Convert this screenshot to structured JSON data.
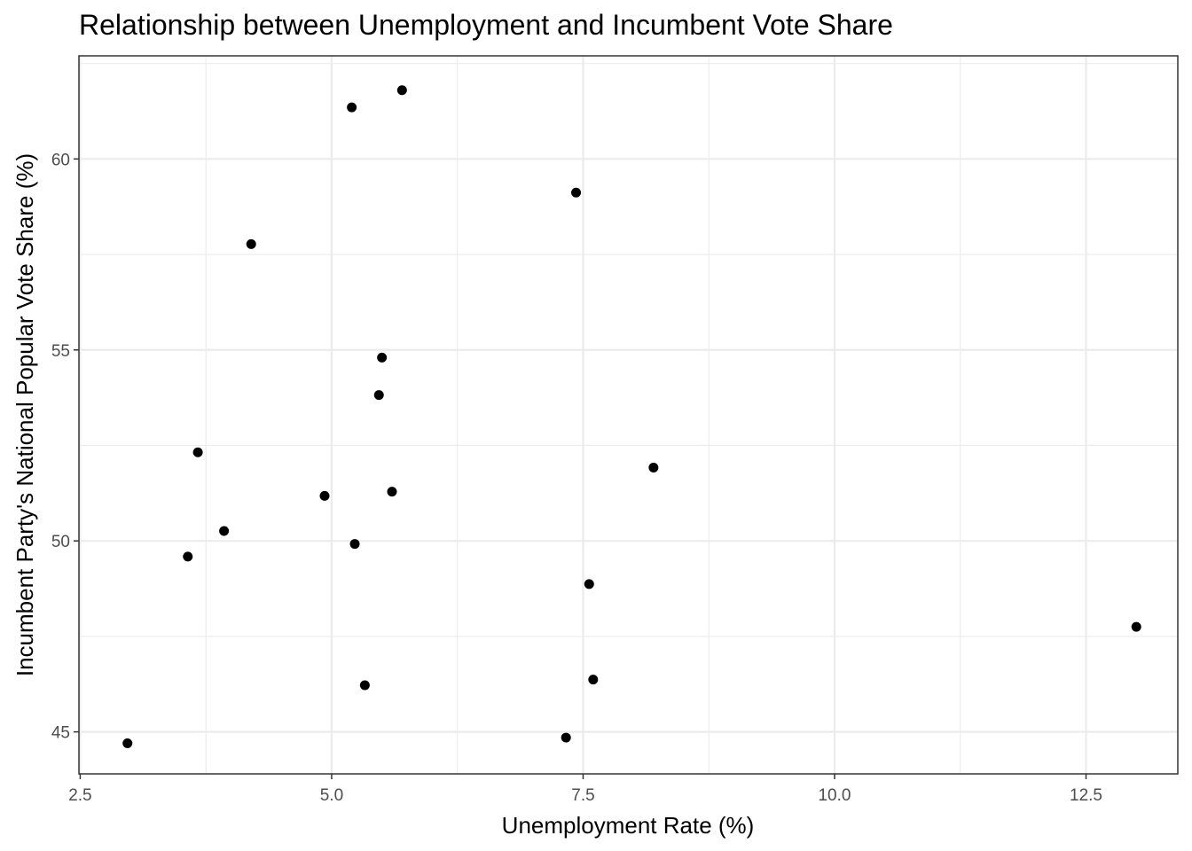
{
  "chart_data": {
    "type": "scatter",
    "title": "Relationship between Unemployment and Incumbent Vote Share",
    "xlabel": "Unemployment Rate (%)",
    "ylabel": "Incumbent Party's National Popular Vote Share (%)",
    "xlim": [
      2.4875,
      13.4125
    ],
    "ylim": [
      43.9,
      62.7
    ],
    "x_ticks": [
      2.5,
      5.0,
      7.5,
      10.0,
      12.5
    ],
    "x_tick_labels": [
      "2.5",
      "5.0",
      "7.5",
      "10.0",
      "12.5"
    ],
    "y_ticks": [
      45,
      50,
      55,
      60
    ],
    "y_tick_labels": [
      "45",
      "50",
      "55",
      "60"
    ],
    "grid": true,
    "point_color": "#000000",
    "points": [
      {
        "x": 5.7,
        "y": 61.8
      },
      {
        "x": 5.2,
        "y": 61.35
      },
      {
        "x": 7.43,
        "y": 59.12
      },
      {
        "x": 4.2,
        "y": 57.77
      },
      {
        "x": 5.5,
        "y": 54.8
      },
      {
        "x": 5.47,
        "y": 53.82
      },
      {
        "x": 3.67,
        "y": 52.32
      },
      {
        "x": 8.2,
        "y": 51.92
      },
      {
        "x": 5.6,
        "y": 51.29
      },
      {
        "x": 4.93,
        "y": 51.18
      },
      {
        "x": 3.93,
        "y": 50.26
      },
      {
        "x": 5.23,
        "y": 49.92
      },
      {
        "x": 3.57,
        "y": 49.59
      },
      {
        "x": 7.56,
        "y": 48.87
      },
      {
        "x": 13.0,
        "y": 47.75
      },
      {
        "x": 7.6,
        "y": 46.37
      },
      {
        "x": 5.33,
        "y": 46.22
      },
      {
        "x": 7.33,
        "y": 44.85
      },
      {
        "x": 2.97,
        "y": 44.7
      }
    ]
  }
}
